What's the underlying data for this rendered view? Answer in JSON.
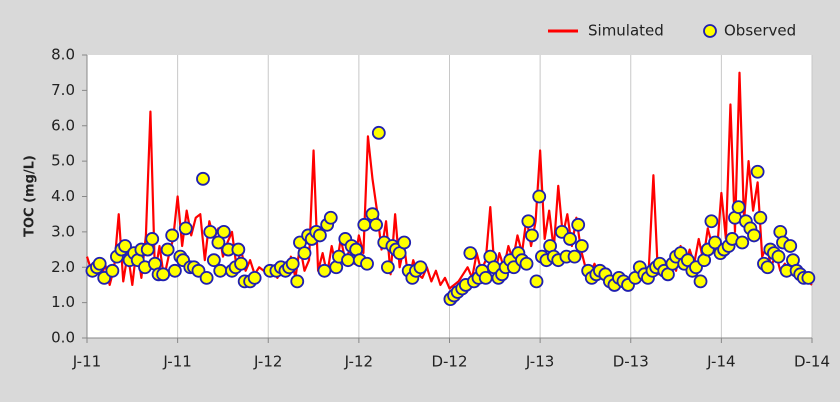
{
  "chart_data": {
    "type": "line",
    "ylabel": "TOC (mg/L)",
    "xlim": [
      0,
      8
    ],
    "xticks": [
      {
        "value": 0,
        "label": "J-11"
      },
      {
        "value": 1,
        "label": "J-11"
      },
      {
        "value": 2,
        "label": "J-12"
      },
      {
        "value": 3,
        "label": "J-12"
      },
      {
        "value": 4,
        "label": "D-12"
      },
      {
        "value": 5,
        "label": "J-13"
      },
      {
        "value": 6,
        "label": "D-13"
      },
      {
        "value": 7,
        "label": "J-14"
      },
      {
        "value": 8,
        "label": "D-14"
      }
    ],
    "ylim": [
      0,
      8
    ],
    "yticks": [
      {
        "value": 0,
        "label": "0.0"
      },
      {
        "value": 1,
        "label": "1.0"
      },
      {
        "value": 2,
        "label": "2.0"
      },
      {
        "value": 3,
        "label": "3.0"
      },
      {
        "value": 4,
        "label": "4.0"
      },
      {
        "value": 5,
        "label": "5.0"
      },
      {
        "value": 6,
        "label": "6.0"
      },
      {
        "value": 7,
        "label": "7.0"
      },
      {
        "value": 8,
        "label": "8.0"
      }
    ],
    "grid": "x",
    "legend": "top-right",
    "series": [
      {
        "name": "Simulated",
        "type": "line",
        "color": "#ff0000",
        "x": [
          0,
          0.05,
          0.1,
          0.15,
          0.2,
          0.25,
          0.3,
          0.35,
          0.4,
          0.45,
          0.5,
          0.55,
          0.6,
          0.65,
          0.7,
          0.75,
          0.8,
          0.85,
          0.9,
          0.95,
          1.0,
          1.05,
          1.1,
          1.15,
          1.2,
          1.25,
          1.3,
          1.35,
          1.4,
          1.45,
          1.5,
          1.55,
          1.6,
          1.65,
          1.7,
          1.75,
          1.8,
          1.85,
          1.9,
          1.95,
          2.0,
          2.05,
          2.1,
          2.15,
          2.2,
          2.25,
          2.3,
          2.35,
          2.4,
          2.45,
          2.5,
          2.55,
          2.6,
          2.65,
          2.7,
          2.75,
          2.8,
          2.85,
          2.9,
          2.95,
          3.0,
          3.05,
          3.1,
          3.15,
          3.2,
          3.25,
          3.3,
          3.35,
          3.4,
          3.45,
          3.5,
          3.55,
          3.6,
          3.65,
          3.7,
          3.75,
          3.8,
          3.85,
          3.9,
          3.95,
          4.0,
          4.05,
          4.1,
          4.15,
          4.2,
          4.25,
          4.3,
          4.35,
          4.4,
          4.45,
          4.5,
          4.55,
          4.6,
          4.65,
          4.7,
          4.75,
          4.8,
          4.85,
          4.9,
          4.95,
          5.0,
          5.05,
          5.1,
          5.15,
          5.2,
          5.25,
          5.3,
          5.35,
          5.4,
          5.45,
          5.5,
          5.55,
          5.6,
          5.65,
          5.7,
          5.75,
          5.8,
          5.85,
          5.9,
          5.95,
          6.0,
          6.05,
          6.1,
          6.15,
          6.2,
          6.25,
          6.3,
          6.35,
          6.4,
          6.45,
          6.5,
          6.55,
          6.6,
          6.65,
          6.7,
          6.75,
          6.8,
          6.85,
          6.9,
          6.95,
          7.0,
          7.05,
          7.1,
          7.15,
          7.2,
          7.25,
          7.3,
          7.35,
          7.4,
          7.45,
          7.5,
          7.55,
          7.6,
          7.65,
          7.7,
          7.75,
          7.8,
          7.85,
          7.9,
          7.95,
          8.0
        ],
        "values": [
          2.3,
          1.9,
          2.2,
          1.6,
          2.1,
          1.5,
          2.0,
          3.5,
          1.6,
          2.4,
          1.5,
          2.6,
          1.7,
          2.9,
          6.4,
          1.8,
          2.6,
          1.7,
          2.3,
          2.8,
          4.0,
          2.6,
          3.6,
          2.9,
          3.4,
          3.5,
          2.2,
          3.3,
          2.8,
          3.1,
          2.3,
          2.7,
          3.0,
          2.0,
          2.5,
          1.9,
          2.2,
          1.8,
          2.0,
          1.9,
          1.8,
          2.0,
          1.7,
          1.9,
          1.8,
          2.3,
          1.7,
          2.6,
          1.9,
          2.2,
          5.3,
          1.9,
          2.4,
          1.8,
          2.6,
          2.0,
          2.8,
          2.2,
          2.5,
          2.1,
          2.9,
          2.4,
          5.7,
          4.5,
          3.6,
          2.5,
          3.3,
          1.8,
          3.5,
          2.0,
          2.6,
          1.6,
          2.2,
          1.8,
          1.7,
          2.0,
          1.6,
          1.9,
          1.5,
          1.7,
          1.4,
          1.5,
          1.6,
          1.8,
          2.0,
          1.7,
          2.4,
          1.9,
          2.2,
          3.7,
          1.8,
          2.4,
          2.0,
          2.6,
          2.2,
          2.9,
          2.4,
          3.4,
          2.6,
          3.3,
          5.3,
          2.8,
          3.6,
          2.5,
          4.3,
          2.9,
          3.5,
          2.6,
          3.4,
          2.5,
          2.0,
          1.8,
          2.1,
          1.7,
          1.9,
          1.6,
          1.7,
          1.5,
          1.8,
          1.6,
          1.5,
          1.7,
          1.9,
          1.6,
          2.0,
          4.6,
          1.8,
          2.1,
          1.7,
          2.3,
          1.9,
          2.6,
          2.0,
          2.5,
          2.1,
          2.8,
          2.2,
          3.1,
          2.6,
          2.4,
          4.1,
          2.8,
          6.6,
          3.0,
          7.5,
          3.3,
          5.0,
          3.6,
          4.4,
          2.3,
          2.6,
          2.0,
          2.4,
          1.9,
          2.1,
          1.8,
          1.9,
          1.7,
          1.8,
          1.6,
          1.5
        ]
      },
      {
        "name": "Observed",
        "type": "scatter",
        "color": "#ffff00",
        "edge_color": "#2020b0",
        "x": [
          0.06,
          0.11,
          0.14,
          0.19,
          0.28,
          0.33,
          0.38,
          0.42,
          0.47,
          0.52,
          0.56,
          0.6,
          0.64,
          0.67,
          0.72,
          0.75,
          0.79,
          0.84,
          0.89,
          0.94,
          0.97,
          1.03,
          1.06,
          1.09,
          1.14,
          1.18,
          1.23,
          1.28,
          1.32,
          1.36,
          1.4,
          1.45,
          1.47,
          1.51,
          1.56,
          1.6,
          1.64,
          1.67,
          1.7,
          1.74,
          1.8,
          1.85,
          2.02,
          2.09,
          2.14,
          2.19,
          2.23,
          2.27,
          2.32,
          2.35,
          2.4,
          2.44,
          2.48,
          2.53,
          2.57,
          2.62,
          2.65,
          2.69,
          2.75,
          2.78,
          2.85,
          2.88,
          2.92,
          2.97,
          3.01,
          3.06,
          3.09,
          3.15,
          3.19,
          3.22,
          3.28,
          3.32,
          3.37,
          3.41,
          3.45,
          3.5,
          3.55,
          3.59,
          3.63,
          3.68,
          4.01,
          4.05,
          4.09,
          4.14,
          4.18,
          4.23,
          4.27,
          4.32,
          4.36,
          4.4,
          4.45,
          4.49,
          4.54,
          4.58,
          4.62,
          4.67,
          4.71,
          4.76,
          4.8,
          4.85,
          4.87,
          4.91,
          4.96,
          4.99,
          5.02,
          5.07,
          5.11,
          5.15,
          5.2,
          5.24,
          5.29,
          5.33,
          5.38,
          5.42,
          5.46,
          5.53,
          5.57,
          5.62,
          5.66,
          5.72,
          5.77,
          5.82,
          5.87,
          5.92,
          5.97,
          6.05,
          6.1,
          6.15,
          6.19,
          6.24,
          6.28,
          6.32,
          6.37,
          6.41,
          6.46,
          6.5,
          6.55,
          6.59,
          6.63,
          6.68,
          6.72,
          6.77,
          6.81,
          6.85,
          6.89,
          6.93,
          6.99,
          7.03,
          7.08,
          7.12,
          7.15,
          7.19,
          7.23,
          7.27,
          7.32,
          7.36,
          7.4,
          7.43,
          7.47,
          7.51,
          7.54,
          7.58,
          7.63,
          7.65,
          7.68,
          7.72,
          7.76,
          7.79,
          7.83,
          7.87,
          7.91,
          7.96
        ],
        "values": [
          1.9,
          2.0,
          2.1,
          1.7,
          1.9,
          2.3,
          2.5,
          2.6,
          2.2,
          2.4,
          2.2,
          2.5,
          2.0,
          2.5,
          2.8,
          2.1,
          1.8,
          1.8,
          2.5,
          2.9,
          1.9,
          2.3,
          2.2,
          3.1,
          2.0,
          2.0,
          1.9,
          4.5,
          1.7,
          3.0,
          2.2,
          2.7,
          1.9,
          3.0,
          2.5,
          1.9,
          2.0,
          2.5,
          2.1,
          1.6,
          1.6,
          1.7,
          1.9,
          1.9,
          2.0,
          1.9,
          2.0,
          2.1,
          1.6,
          2.7,
          2.4,
          2.9,
          2.8,
          3.0,
          2.9,
          1.9,
          3.2,
          3.4,
          2.0,
          2.3,
          2.8,
          2.2,
          2.6,
          2.5,
          2.2,
          3.2,
          2.1,
          3.5,
          3.2,
          5.8,
          2.7,
          2.0,
          2.6,
          2.5,
          2.4,
          2.7,
          1.9,
          1.7,
          1.9,
          2.0,
          1.1,
          1.2,
          1.3,
          1.4,
          1.5,
          2.4,
          1.6,
          1.7,
          1.9,
          1.7,
          2.3,
          2.0,
          1.7,
          1.8,
          2.0,
          2.2,
          2.0,
          2.4,
          2.2,
          2.1,
          3.3,
          2.9,
          1.6,
          4.0,
          2.3,
          2.2,
          2.6,
          2.3,
          2.2,
          3.0,
          2.3,
          2.8,
          2.3,
          3.2,
          2.6,
          1.9,
          1.7,
          1.8,
          1.9,
          1.8,
          1.6,
          1.5,
          1.7,
          1.6,
          1.5,
          1.7,
          2.0,
          1.8,
          1.7,
          1.9,
          2.0,
          2.1,
          1.9,
          1.8,
          2.1,
          2.3,
          2.4,
          2.1,
          2.2,
          1.9,
          2.0,
          1.6,
          2.2,
          2.5,
          3.3,
          2.7,
          2.4,
          2.5,
          2.6,
          2.8,
          3.4,
          3.7,
          2.7,
          3.3,
          3.1,
          2.9,
          4.7,
          3.4,
          2.1,
          2.0,
          2.5,
          2.4,
          2.3,
          3.0,
          2.7,
          1.9,
          2.6,
          2.2,
          1.9,
          1.8,
          1.7,
          1.7
        ]
      }
    ]
  }
}
